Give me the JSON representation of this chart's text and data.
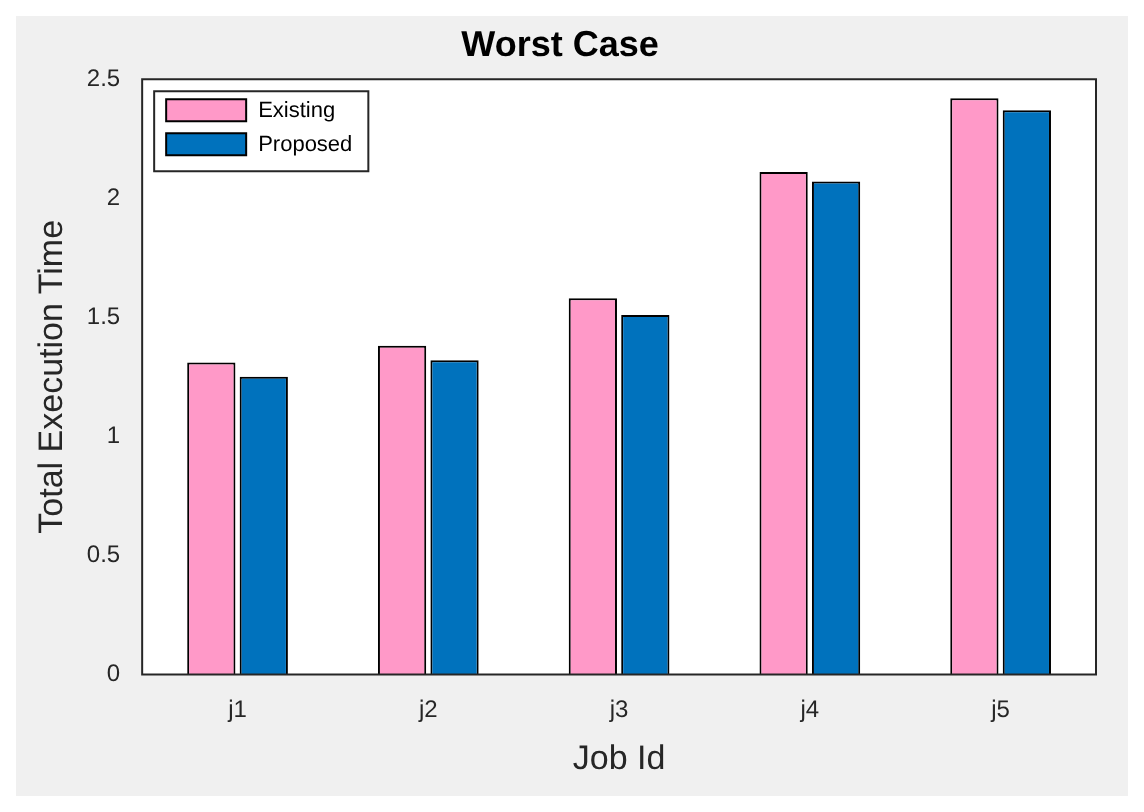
{
  "chart_data": {
    "type": "bar",
    "title": "Worst Case",
    "xlabel": "Job Id",
    "ylabel": "Total Execution Time",
    "categories": [
      "j1",
      "j2",
      "j3",
      "j4",
      "j5"
    ],
    "series": [
      {
        "name": "Existing",
        "color": "#ff99c8",
        "values": [
          1.31,
          1.38,
          1.58,
          2.11,
          2.42
        ]
      },
      {
        "name": "Proposed",
        "color": "#0072bd",
        "values": [
          1.25,
          1.32,
          1.51,
          2.07,
          2.37
        ]
      }
    ],
    "ylim": [
      0,
      2.5
    ],
    "yticks": [
      0,
      0.5,
      1,
      1.5,
      2,
      2.5
    ],
    "grid": false,
    "legend": "top left"
  }
}
